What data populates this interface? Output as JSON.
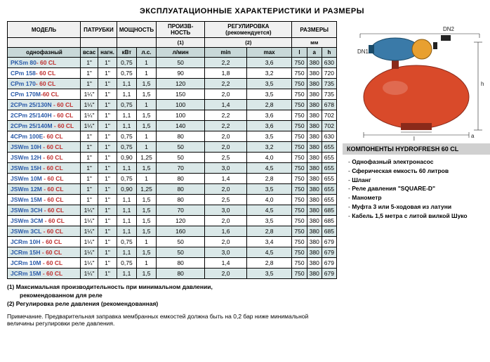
{
  "title": "ЭКСПЛУАТАЦИОННЫЕ ХАРАКТЕРИСТИКИ И РАЗМЕРЫ",
  "table": {
    "headers1": [
      "МОДЕЛЬ",
      "ПАТРУБКИ",
      "МОЩНОСТЬ",
      "ПРОИЗВ-\nНОСТЬ",
      "РЕГУЛИРОВКА\n(рекомендуется)",
      "РАЗМЕРЫ"
    ],
    "headers2_left": "",
    "headers2": [
      "",
      "(1)",
      "(2)",
      "мм"
    ],
    "headers3": [
      "однофазный",
      "всас",
      "нагн.",
      "кВт",
      "л.с.",
      "л/мин",
      "min",
      "max",
      "l",
      "a",
      "h"
    ],
    "rows": [
      {
        "m": "PKSm 80",
        "s": "- 60 CL",
        "c": [
          "1\"",
          "1\"",
          "0,75",
          "1",
          "50",
          "2,2",
          "3,6",
          "750",
          "380",
          "630"
        ],
        "alt": true
      },
      {
        "m": "CPm 158",
        "s": "- 60 CL",
        "c": [
          "1\"",
          "1\"",
          "0,75",
          "1",
          "90",
          "1,8",
          "3,2",
          "750",
          "380",
          "720"
        ],
        "alt": false
      },
      {
        "m": "CPm 170",
        "s": "- 60 CL",
        "c": [
          "1\"",
          "1\"",
          "1,1",
          "1,5",
          "120",
          "2,2",
          "3,5",
          "750",
          "380",
          "735"
        ],
        "alt": true
      },
      {
        "m": "CPm 170M",
        "s": "-60 CL",
        "c": [
          "1¼\"",
          "1\"",
          "1,1",
          "1,5",
          "150",
          "2,0",
          "3,5",
          "750",
          "380",
          "735"
        ],
        "alt": false
      },
      {
        "m": "2CPm 25/130N",
        "s": " - 60 CL",
        "c": [
          "1¼\"",
          "1\"",
          "0,75",
          "1",
          "100",
          "1,4",
          "2,8",
          "750",
          "380",
          "678"
        ],
        "alt": true
      },
      {
        "m": "2CPm 25/140H",
        "s": " - 60 CL",
        "c": [
          "1¼\"",
          "1\"",
          "1,1",
          "1,5",
          "100",
          "2,2",
          "3,6",
          "750",
          "380",
          "702"
        ],
        "alt": false
      },
      {
        "m": "2CPm 25/140M",
        "s": " - 60 CL",
        "c": [
          "1¼\"",
          "1\"",
          "1,1",
          "1,5",
          "140",
          "2,2",
          "3,6",
          "750",
          "380",
          "702"
        ],
        "alt": true
      },
      {
        "m": "4CPm 100E",
        "s": "- 60 CL",
        "c": [
          "1\"",
          "1\"",
          "0,75",
          "1",
          "80",
          "2,0",
          "3,5",
          "750",
          "380",
          "630"
        ],
        "alt": false
      },
      {
        "m": "JSWm 10H",
        "s": " - 60 CL",
        "c": [
          "1\"",
          "1\"",
          "0,75",
          "1",
          "50",
          "2,0",
          "3,2",
          "750",
          "380",
          "655"
        ],
        "alt": true
      },
      {
        "m": "JSWm 12H",
        "s": " - 60 CL",
        "c": [
          "1\"",
          "1\"",
          "0,90",
          "1,25",
          "50",
          "2,5",
          "4,0",
          "750",
          "380",
          "655"
        ],
        "alt": false
      },
      {
        "m": "JSWm 15H",
        "s": " - 60 CL",
        "c": [
          "1\"",
          "1\"",
          "1,1",
          "1,5",
          "70",
          "3,0",
          "4,5",
          "750",
          "380",
          "655"
        ],
        "alt": true
      },
      {
        "m": "JSWm 10M",
        "s": " - 60 CL",
        "c": [
          "1\"",
          "1\"",
          "0,75",
          "1",
          "80",
          "1,4",
          "2,8",
          "750",
          "380",
          "655"
        ],
        "alt": false
      },
      {
        "m": "JSWm 12M",
        "s": " - 60 CL",
        "c": [
          "1\"",
          "1\"",
          "0,90",
          "1,25",
          "80",
          "2,0",
          "3,5",
          "750",
          "380",
          "655"
        ],
        "alt": true
      },
      {
        "m": "JSWm 15M",
        "s": " - 60 CL",
        "c": [
          "1\"",
          "1\"",
          "1,1",
          "1,5",
          "80",
          "2,5",
          "4,0",
          "750",
          "380",
          "655"
        ],
        "alt": false
      },
      {
        "m": "JSWm 3CH",
        "s": " - 60 CL",
        "c": [
          "1¼\"",
          "1\"",
          "1,1",
          "1,5",
          "70",
          "3,0",
          "4,5",
          "750",
          "380",
          "685"
        ],
        "alt": true
      },
      {
        "m": "JSWm 3CM",
        "s": " - 60 CL",
        "c": [
          "1¼\"",
          "1\"",
          "1,1",
          "1,5",
          "120",
          "2,0",
          "3,5",
          "750",
          "380",
          "685"
        ],
        "alt": false
      },
      {
        "m": "JSWm 3CL",
        "s": " - 60 CL",
        "c": [
          "1¼\"",
          "1\"",
          "1,1",
          "1,5",
          "160",
          "1,6",
          "2,8",
          "750",
          "380",
          "685"
        ],
        "alt": true
      },
      {
        "m": "JCRm 10H",
        "s": " - 60 CL",
        "c": [
          "1¼\"",
          "1\"",
          "0,75",
          "1",
          "50",
          "2,0",
          "3,4",
          "750",
          "380",
          "679"
        ],
        "alt": false
      },
      {
        "m": "JCRm 15H",
        "s": " - 60 CL",
        "c": [
          "1¼\"",
          "1\"",
          "1,1",
          "1,5",
          "50",
          "3,0",
          "4,5",
          "750",
          "380",
          "679"
        ],
        "alt": true
      },
      {
        "m": "JCRm 10M",
        "s": " - 60 CL",
        "c": [
          "1¼\"",
          "1\"",
          "0,75",
          "1",
          "80",
          "1,4",
          "2,8",
          "750",
          "380",
          "679"
        ],
        "alt": false
      },
      {
        "m": "JCRm 15M",
        "s": " - 60 CL",
        "c": [
          "1¼\"",
          "1\"",
          "1,1",
          "1,5",
          "80",
          "2,0",
          "3,5",
          "750",
          "380",
          "679"
        ],
        "alt": true
      }
    ]
  },
  "footnotes": {
    "f1a": "(1) Максимальная производительность при минимальном давлении,",
    "f1b": "рекомендованном для реле",
    "f2": "(2) Регулировка реле давления (рекомендованная)"
  },
  "note_label": "Примечание.",
  "note_text": "Предварительная заправка мембранных емкостей должна быть на 0,2 бар ниже минимальной величины регулировки реле давления.",
  "components": {
    "title": "КОМПОНЕНТЫ HYDROFRESH 60 CL",
    "items": [
      "Однофазный электронасос",
      "Сферическая емкость 60 литров",
      "Шланг",
      "Реле давления \"SQUARE-D\"",
      "Манометр",
      "Муфта 3 или 5-ходовая из латуни",
      "Кабель 1,5 метра с литой вилкой Шуко"
    ]
  },
  "diagram": {
    "labels": {
      "dn2": "DN2",
      "dn1": "DN1",
      "h": "h",
      "l": "l",
      "a": "a"
    },
    "colors": {
      "tank": "#d94a2a",
      "tank_dark": "#8a2a1a",
      "motor": "#3a7aa8",
      "motor_dark": "#1a4a68",
      "impeller": "#e8a030",
      "lines": "#222222"
    }
  }
}
